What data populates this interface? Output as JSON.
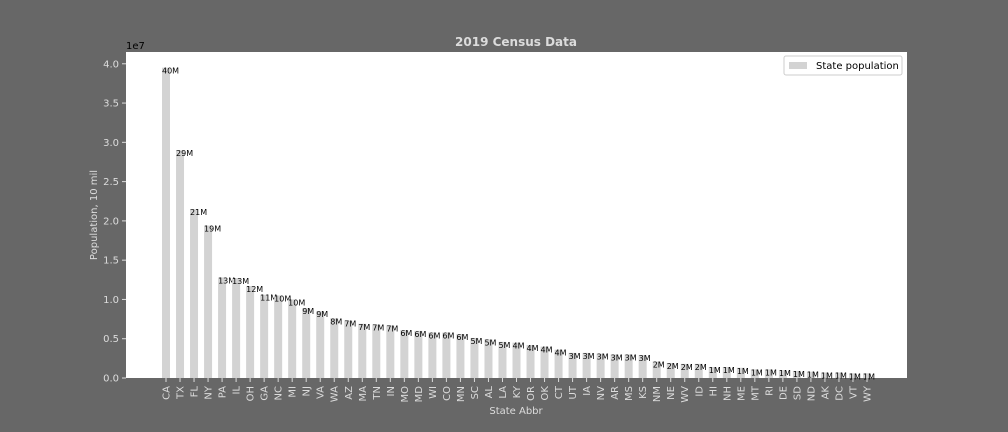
{
  "chart_data": {
    "type": "bar",
    "title": "2019 Census Data",
    "xlabel": "State Abbr",
    "ylabel": "Population, 10 mil",
    "y_scale_label": "1e7",
    "ylim": [
      0,
      4.15
    ],
    "yticks": [
      0.0,
      0.5,
      1.0,
      1.5,
      2.0,
      2.5,
      3.0,
      3.5,
      4.0
    ],
    "ytick_labels": [
      "0.0",
      "0.5",
      "1.0",
      "1.5",
      "2.0",
      "2.5",
      "3.0",
      "3.5",
      "4.0"
    ],
    "grid": false,
    "legend_position": "top-right",
    "series": [
      {
        "name": "State population",
        "color": "#d3d3d3"
      }
    ],
    "categories": [
      "CA",
      "TX",
      "FL",
      "NY",
      "PA",
      "IL",
      "OH",
      "GA",
      "NC",
      "MI",
      "NJ",
      "VA",
      "WA",
      "AZ",
      "MA",
      "TN",
      "IN",
      "MO",
      "MD",
      "WI",
      "CO",
      "MN",
      "SC",
      "AL",
      "LA",
      "KY",
      "OR",
      "OK",
      "CT",
      "UT",
      "IA",
      "NV",
      "AR",
      "MS",
      "KS",
      "NM",
      "NE",
      "WV",
      "ID",
      "HI",
      "NH",
      "ME",
      "MT",
      "RI",
      "DE",
      "SD",
      "ND",
      "AK",
      "DC",
      "VT",
      "WY"
    ],
    "values": [
      3.95,
      2.9,
      2.15,
      1.94,
      1.28,
      1.27,
      1.17,
      1.06,
      1.05,
      1.0,
      0.89,
      0.85,
      0.76,
      0.73,
      0.69,
      0.68,
      0.67,
      0.61,
      0.6,
      0.58,
      0.58,
      0.56,
      0.51,
      0.49,
      0.46,
      0.45,
      0.42,
      0.4,
      0.36,
      0.32,
      0.32,
      0.31,
      0.3,
      0.3,
      0.29,
      0.21,
      0.19,
      0.18,
      0.18,
      0.14,
      0.14,
      0.13,
      0.11,
      0.11,
      0.1,
      0.09,
      0.08,
      0.07,
      0.07,
      0.06,
      0.06
    ],
    "bar_labels": [
      "40M",
      "29M",
      "21M",
      "19M",
      "13M",
      "13M",
      "12M",
      "11M",
      "10M",
      "10M",
      "9M",
      "9M",
      "8M",
      "7M",
      "7M",
      "7M",
      "7M",
      "6M",
      "6M",
      "6M",
      "6M",
      "6M",
      "5M",
      "5M",
      "5M",
      "4M",
      "4M",
      "4M",
      "4M",
      "3M",
      "3M",
      "3M",
      "3M",
      "3M",
      "3M",
      "2M",
      "2M",
      "2M",
      "2M",
      "1M",
      "1M",
      "1M",
      "1M",
      "1M",
      "1M",
      "1M",
      "1M",
      "1M",
      "1M",
      "1M",
      "1M"
    ]
  }
}
